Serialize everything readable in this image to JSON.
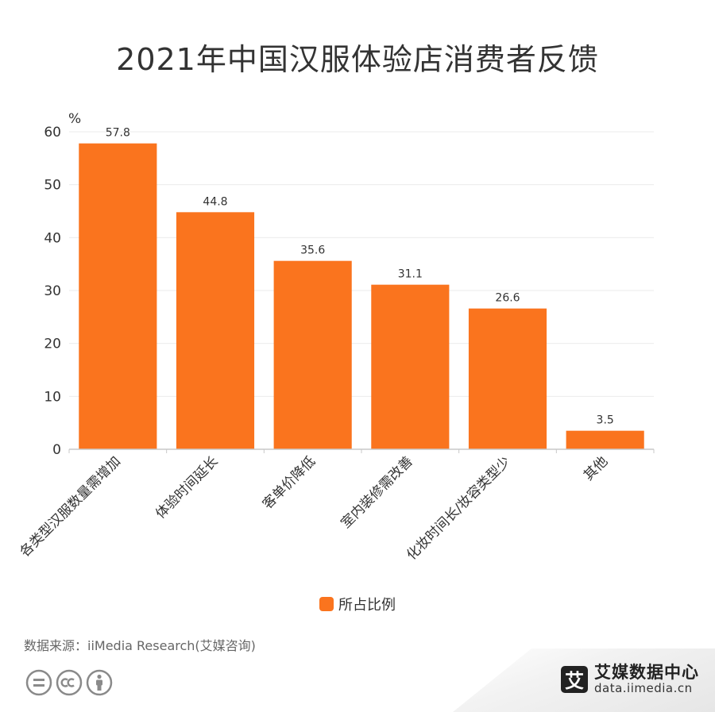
{
  "page": {
    "title": "2021年中国汉服体验店消费者反馈",
    "source": "数据来源：iiMedia Research(艾媒咨询)",
    "brand_logo_char": "艾",
    "brand_name": "艾媒数据中心",
    "brand_url": "data.iimedia.cn",
    "colors": {
      "bar": "#FA741E",
      "grid": "#ebebeb",
      "axis": "#c8c8c8"
    },
    "icons": [
      "equals-circle-icon",
      "cc-icon",
      "person-icon"
    ]
  },
  "chart_data": {
    "type": "bar",
    "title": "2021年中国汉服体验店消费者反馈",
    "ylabel": "%",
    "ylim": [
      0,
      60
    ],
    "yticks": [
      0,
      10,
      20,
      30,
      40,
      50,
      60
    ],
    "categories": [
      "各类型汉服数量需增加",
      "体验时间延长",
      "客单价降低",
      "室内装修需改善",
      "化妆时间长/妆容类型少",
      "其他"
    ],
    "series": [
      {
        "name": "所占比例",
        "values": [
          57.8,
          44.8,
          35.6,
          31.1,
          26.6,
          3.5
        ]
      }
    ],
    "grid": true,
    "legend_position": "bottom"
  }
}
